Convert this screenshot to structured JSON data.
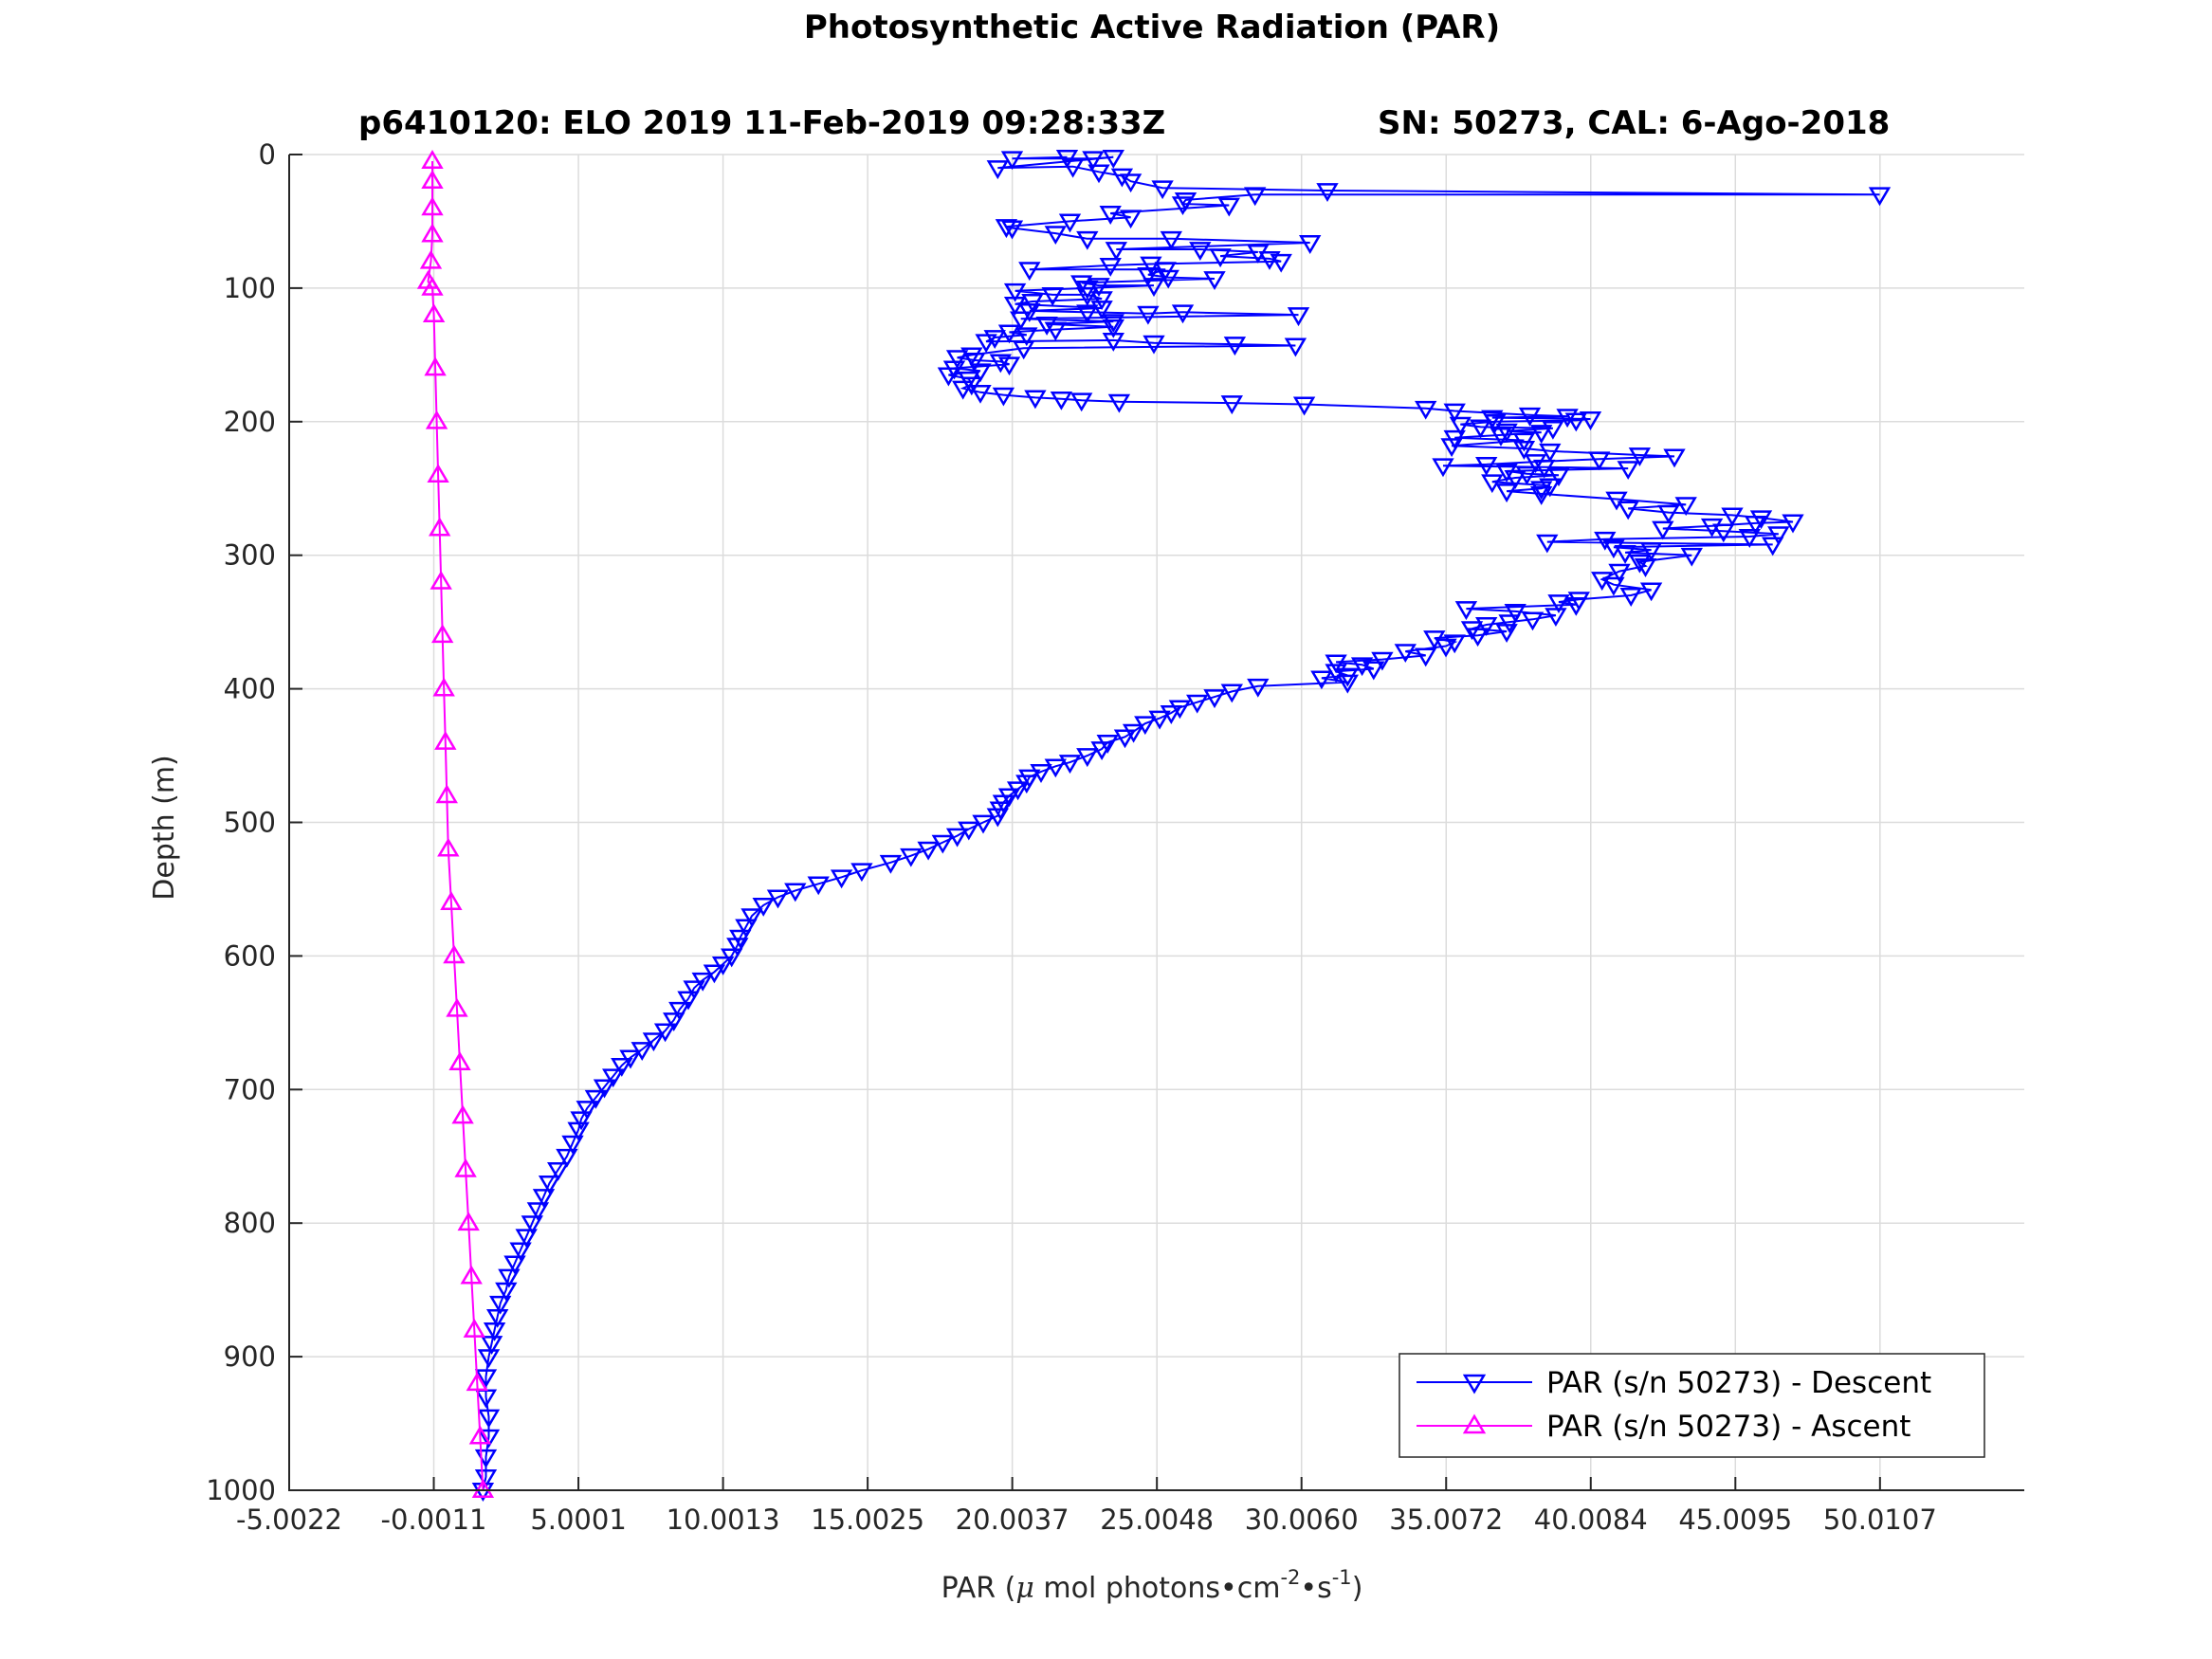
{
  "chart_data": {
    "type": "line",
    "title": "Photosynthetic Active Radiation (PAR)",
    "subtitle_left": "p6410120: ELO 2019 11-Feb-2019 09:28:33Z",
    "subtitle_right": "SN: 50273, CAL: 6-Ago-2018",
    "xlabel": "PAR (",
    "xlabel_mu": "μ",
    "xlabel_rest": " mol photons•cm",
    "xlabel_sup1": "-2",
    "xlabel_mid": "•s",
    "xlabel_sup2": "-1",
    "xlabel_close": ")",
    "ylabel": "Depth (m)",
    "xlim": [
      -5.0022,
      55.0
    ],
    "ylim": [
      1000,
      0
    ],
    "y_reversed": true,
    "grid": true,
    "legend_position": "bottom-right",
    "xticks": [
      -5.0022,
      -0.0011,
      5.0001,
      10.0013,
      15.0025,
      20.0037,
      25.0048,
      30.006,
      35.0072,
      40.0084,
      45.0095,
      50.0107
    ],
    "xtick_labels": [
      "-5.0022",
      "-0.0011",
      "5.0001",
      "10.0013",
      "15.0025",
      "20.0037",
      "25.0048",
      "30.0060",
      "35.0072",
      "40.0084",
      "45.0095",
      "50.0107"
    ],
    "yticks": [
      0,
      100,
      200,
      300,
      400,
      500,
      600,
      700,
      800,
      900,
      1000
    ],
    "ytick_labels": [
      "0",
      "100",
      "200",
      "300",
      "400",
      "500",
      "600",
      "700",
      "800",
      "900",
      "1000"
    ],
    "series": [
      {
        "name": "PAR (s/n 50273) - Descent",
        "color": "#0000ff",
        "marker": "triangle-down",
        "points": [
          [
            21.9,
            2
          ],
          [
            20.0,
            3
          ],
          [
            22.8,
            3
          ],
          [
            23.5,
            2
          ],
          [
            19.5,
            10
          ],
          [
            22.1,
            9
          ],
          [
            23.0,
            13
          ],
          [
            23.8,
            16
          ],
          [
            24.1,
            20
          ],
          [
            25.2,
            25
          ],
          [
            30.9,
            27
          ],
          [
            50.0,
            30
          ],
          [
            28.4,
            30
          ],
          [
            26.0,
            34
          ],
          [
            25.9,
            37
          ],
          [
            27.5,
            38
          ],
          [
            23.4,
            44
          ],
          [
            24.1,
            47
          ],
          [
            22.0,
            50
          ],
          [
            19.8,
            54
          ],
          [
            20.0,
            55
          ],
          [
            21.5,
            59
          ],
          [
            22.6,
            63
          ],
          [
            25.5,
            63
          ],
          [
            30.3,
            66
          ],
          [
            23.6,
            71
          ],
          [
            26.5,
            71
          ],
          [
            28.5,
            73
          ],
          [
            27.2,
            76
          ],
          [
            28.9,
            78
          ],
          [
            29.3,
            80
          ],
          [
            24.8,
            82
          ],
          [
            23.4,
            83
          ],
          [
            20.6,
            86
          ],
          [
            25.3,
            86
          ],
          [
            24.7,
            90
          ],
          [
            25.4,
            92
          ],
          [
            27.0,
            93
          ],
          [
            22.4,
            96
          ],
          [
            23.0,
            98
          ],
          [
            24.9,
            98
          ],
          [
            22.6,
            100
          ],
          [
            20.1,
            102
          ],
          [
            21.4,
            105
          ],
          [
            22.6,
            105
          ],
          [
            23.1,
            108
          ],
          [
            20.7,
            110
          ],
          [
            20.1,
            112
          ],
          [
            23.1,
            115
          ],
          [
            20.6,
            117
          ],
          [
            22.6,
            118
          ],
          [
            24.7,
            119
          ],
          [
            25.9,
            118
          ],
          [
            29.9,
            120
          ],
          [
            20.3,
            123
          ],
          [
            23.5,
            125
          ],
          [
            21.2,
            127
          ],
          [
            23.5,
            129
          ],
          [
            21.5,
            131
          ],
          [
            19.9,
            133
          ],
          [
            20.5,
            135
          ],
          [
            19.4,
            137
          ],
          [
            19.1,
            140
          ],
          [
            23.5,
            139
          ],
          [
            24.9,
            141
          ],
          [
            27.7,
            142
          ],
          [
            29.8,
            143
          ],
          [
            20.4,
            145
          ],
          [
            18.6,
            150
          ],
          [
            18.1,
            152
          ],
          [
            18.7,
            154
          ],
          [
            19.6,
            155
          ],
          [
            19.9,
            157
          ],
          [
            18.0,
            160
          ],
          [
            18.9,
            162
          ],
          [
            17.8,
            165
          ],
          [
            18.5,
            168
          ],
          [
            18.6,
            172
          ],
          [
            18.3,
            175
          ],
          [
            18.9,
            178
          ],
          [
            19.7,
            180
          ],
          [
            20.8,
            182
          ],
          [
            21.7,
            183
          ],
          [
            22.4,
            184
          ],
          [
            23.7,
            185
          ],
          [
            27.6,
            186
          ],
          [
            30.1,
            187
          ],
          [
            34.3,
            190
          ],
          [
            35.3,
            192
          ],
          [
            37.9,
            195
          ],
          [
            39.2,
            196
          ],
          [
            36.6,
            197
          ],
          [
            40.0,
            198
          ],
          [
            39.5,
            199
          ],
          [
            36.7,
            200
          ],
          [
            35.5,
            202
          ],
          [
            36.2,
            204
          ],
          [
            38.7,
            205
          ],
          [
            37.1,
            207
          ],
          [
            38.3,
            208
          ],
          [
            36.9,
            210
          ],
          [
            35.3,
            212
          ],
          [
            37.7,
            214
          ],
          [
            35.2,
            218
          ],
          [
            37.7,
            220
          ],
          [
            38.6,
            222
          ],
          [
            41.7,
            225
          ],
          [
            42.9,
            226
          ],
          [
            40.3,
            228
          ],
          [
            38.1,
            230
          ],
          [
            36.4,
            232
          ],
          [
            34.9,
            233
          ],
          [
            38.4,
            234
          ],
          [
            41.3,
            235
          ],
          [
            37.1,
            237
          ],
          [
            37.8,
            239
          ],
          [
            38.9,
            240
          ],
          [
            37.4,
            242
          ],
          [
            36.6,
            245
          ],
          [
            38.6,
            248
          ],
          [
            38.3,
            250
          ],
          [
            37.1,
            252
          ],
          [
            38.3,
            254
          ],
          [
            40.9,
            258
          ],
          [
            43.3,
            262
          ],
          [
            41.3,
            265
          ],
          [
            42.7,
            268
          ],
          [
            44.9,
            270
          ],
          [
            45.9,
            272
          ],
          [
            47.0,
            275
          ],
          [
            45.7,
            276
          ],
          [
            44.2,
            278
          ],
          [
            42.5,
            280
          ],
          [
            44.6,
            282
          ],
          [
            46.5,
            284
          ],
          [
            45.5,
            286
          ],
          [
            40.5,
            288
          ],
          [
            38.5,
            290
          ],
          [
            46.3,
            292
          ],
          [
            40.8,
            294
          ],
          [
            42.1,
            296
          ],
          [
            41.2,
            298
          ],
          [
            43.5,
            300
          ],
          [
            41.7,
            305
          ],
          [
            41.9,
            308
          ],
          [
            41.0,
            312
          ],
          [
            40.4,
            318
          ],
          [
            40.8,
            322
          ],
          [
            42.1,
            326
          ],
          [
            41.4,
            330
          ],
          [
            39.6,
            333
          ],
          [
            38.9,
            335
          ],
          [
            39.5,
            337
          ],
          [
            35.7,
            340
          ],
          [
            37.4,
            342
          ],
          [
            38.8,
            345
          ],
          [
            38.0,
            348
          ],
          [
            37.2,
            350
          ],
          [
            36.4,
            352
          ],
          [
            35.9,
            355
          ],
          [
            37.1,
            357
          ],
          [
            36.1,
            360
          ],
          [
            34.6,
            362
          ],
          [
            35.3,
            365
          ],
          [
            35.0,
            368
          ],
          [
            33.6,
            372
          ],
          [
            34.3,
            375
          ],
          [
            32.8,
            378
          ],
          [
            31.2,
            380
          ],
          [
            32.1,
            382
          ],
          [
            32.5,
            385
          ],
          [
            31.2,
            387
          ],
          [
            31.6,
            390
          ],
          [
            30.7,
            392
          ],
          [
            31.6,
            395
          ],
          [
            28.5,
            398
          ],
          [
            27.6,
            402
          ],
          [
            27.0,
            406
          ],
          [
            26.4,
            410
          ],
          [
            25.8,
            414
          ],
          [
            25.5,
            418
          ],
          [
            25.1,
            422
          ],
          [
            24.6,
            426
          ],
          [
            24.2,
            432
          ],
          [
            23.9,
            436
          ],
          [
            23.3,
            440
          ],
          [
            23.1,
            445
          ],
          [
            22.6,
            450
          ],
          [
            22.0,
            455
          ],
          [
            21.5,
            458
          ],
          [
            21.0,
            462
          ],
          [
            20.6,
            466
          ],
          [
            20.5,
            470
          ],
          [
            20.2,
            475
          ],
          [
            19.9,
            480
          ],
          [
            19.7,
            485
          ],
          [
            19.6,
            490
          ],
          [
            19.5,
            495
          ],
          [
            19.0,
            500
          ],
          [
            18.5,
            505
          ],
          [
            18.1,
            510
          ],
          [
            17.6,
            515
          ],
          [
            17.1,
            520
          ],
          [
            16.5,
            525
          ],
          [
            15.8,
            530
          ],
          [
            14.8,
            536
          ],
          [
            14.1,
            541
          ],
          [
            13.3,
            546
          ],
          [
            12.5,
            551
          ],
          [
            11.9,
            556
          ],
          [
            11.4,
            562
          ],
          [
            11.0,
            570
          ],
          [
            10.8,
            578
          ],
          [
            10.6,
            586
          ],
          [
            10.5,
            592
          ],
          [
            10.3,
            600
          ],
          [
            10.0,
            606
          ],
          [
            9.7,
            612
          ],
          [
            9.3,
            618
          ],
          [
            9.0,
            624
          ],
          [
            8.8,
            632
          ],
          [
            8.5,
            640
          ],
          [
            8.3,
            648
          ],
          [
            8.0,
            656
          ],
          [
            7.6,
            663
          ],
          [
            7.2,
            670
          ],
          [
            6.8,
            676
          ],
          [
            6.5,
            682
          ],
          [
            6.2,
            690
          ],
          [
            5.9,
            698
          ],
          [
            5.6,
            706
          ],
          [
            5.3,
            714
          ],
          [
            5.1,
            722
          ],
          [
            5.0,
            730
          ],
          [
            4.8,
            740
          ],
          [
            4.6,
            750
          ],
          [
            4.3,
            760
          ],
          [
            4.0,
            770
          ],
          [
            3.8,
            780
          ],
          [
            3.6,
            790
          ],
          [
            3.4,
            800
          ],
          [
            3.2,
            810
          ],
          [
            3.0,
            820
          ],
          [
            2.8,
            830
          ],
          [
            2.6,
            840
          ],
          [
            2.5,
            850
          ],
          [
            2.3,
            860
          ],
          [
            2.2,
            870
          ],
          [
            2.1,
            880
          ],
          [
            2.0,
            890
          ],
          [
            1.9,
            900
          ],
          [
            1.8,
            915
          ],
          [
            1.8,
            930
          ],
          [
            1.9,
            945
          ],
          [
            1.9,
            960
          ],
          [
            1.8,
            975
          ],
          [
            1.8,
            990
          ],
          [
            1.7,
            1000
          ]
        ]
      },
      {
        "name": "PAR (s/n 50273) - Ascent",
        "color": "#ff00ff",
        "marker": "triangle-up",
        "points": [
          [
            1.7,
            1000
          ],
          [
            1.6,
            960
          ],
          [
            1.5,
            920
          ],
          [
            1.4,
            880
          ],
          [
            1.3,
            840
          ],
          [
            1.2,
            800
          ],
          [
            1.1,
            760
          ],
          [
            1.0,
            720
          ],
          [
            0.9,
            680
          ],
          [
            0.8,
            640
          ],
          [
            0.7,
            600
          ],
          [
            0.6,
            560
          ],
          [
            0.5,
            520
          ],
          [
            0.45,
            480
          ],
          [
            0.4,
            440
          ],
          [
            0.35,
            400
          ],
          [
            0.3,
            360
          ],
          [
            0.25,
            320
          ],
          [
            0.2,
            280
          ],
          [
            0.15,
            240
          ],
          [
            0.1,
            200
          ],
          [
            0.05,
            160
          ],
          [
            0.0,
            120
          ],
          [
            -0.05,
            100
          ],
          [
            -0.2,
            95
          ],
          [
            -0.1,
            80
          ],
          [
            -0.05,
            60
          ],
          [
            -0.05,
            40
          ],
          [
            -0.05,
            20
          ],
          [
            -0.05,
            5
          ]
        ]
      }
    ]
  }
}
